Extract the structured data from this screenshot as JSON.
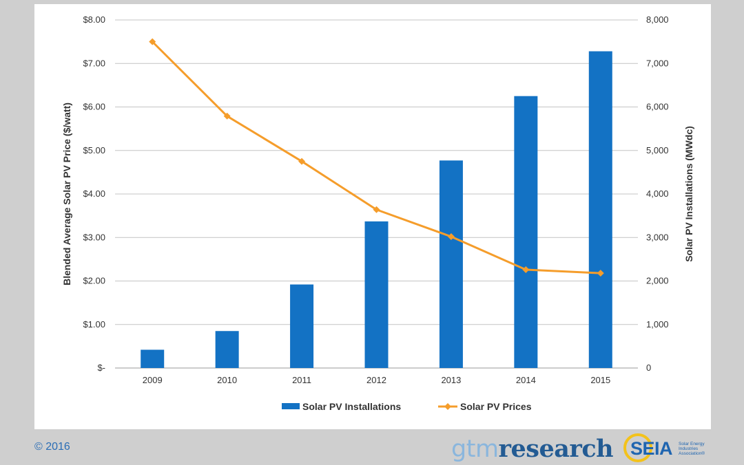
{
  "chart_data": {
    "type": "bar",
    "categories": [
      "2009",
      "2010",
      "2011",
      "2012",
      "2013",
      "2014",
      "2015"
    ],
    "series": [
      {
        "name": "Solar PV Installations",
        "type": "bar",
        "axis": "right",
        "color": "#1372c4",
        "values": [
          420,
          850,
          1920,
          3370,
          4770,
          6250,
          7280
        ]
      },
      {
        "name": "Solar PV Prices",
        "type": "line",
        "axis": "left",
        "color": "#f59d2b",
        "marker": "diamond",
        "values": [
          7.5,
          5.79,
          4.75,
          3.64,
          3.02,
          2.26,
          2.18
        ]
      }
    ],
    "y_left": {
      "label": "Blended Average Solar PV Price ($/watt)",
      "range": [
        0,
        8
      ],
      "ticks": [
        "$-",
        "$1.00",
        "$2.00",
        "$3.00",
        "$4.00",
        "$5.00",
        "$6.00",
        "$7.00",
        "$8.00"
      ]
    },
    "y_right": {
      "label": "Solar PV Installations (MWdc)",
      "range": [
        0,
        8000
      ],
      "ticks": [
        "0",
        "1,000",
        "2,000",
        "3,000",
        "4,000",
        "5,000",
        "6,000",
        "7,000",
        "8,000"
      ]
    },
    "grid": true,
    "legend_position": "bottom"
  },
  "footer": {
    "copyright": "© 2016",
    "gtm_prefix": "gtm",
    "gtm_suffix": "research",
    "seia_name": "SEIA",
    "seia_subtitle": "Solar Energy Industries Association®"
  }
}
